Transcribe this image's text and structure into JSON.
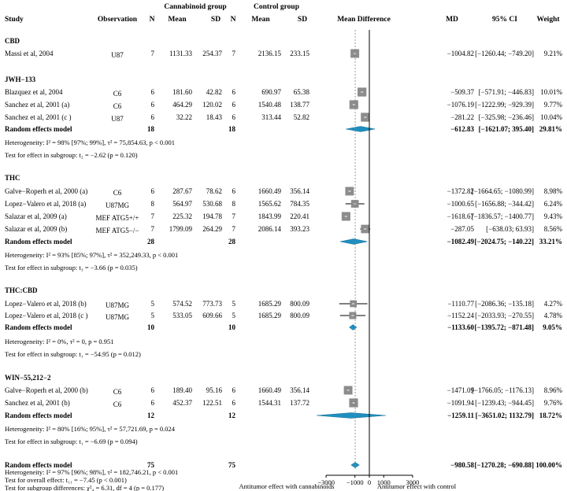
{
  "colors": {
    "box": "#8c8c8c",
    "diamond": "#1f8fc0",
    "line": "#000000"
  },
  "headers": {
    "study": "Study",
    "observation": "Observation",
    "group_treat": "Cannabinoid group",
    "group_ctrl": "Control group",
    "n": "N",
    "mean": "Mean",
    "sd": "SD",
    "mean_diff": "Mean Difference",
    "md": "MD",
    "ci": "95% CI",
    "weight": "Weight"
  },
  "axis": {
    "ticks": [
      -3000,
      -1000,
      0,
      1000,
      3000
    ],
    "tick_labels": [
      "−3000",
      "−1000",
      "0",
      "1000",
      "3000"
    ],
    "label_left": "Antitumor effect with cannabinoids",
    "label_right": "Antitumor effect with control"
  },
  "chart_data": {
    "type": "forest",
    "xlim": [
      -3000,
      3000
    ],
    "groups": [
      {
        "title": "CBD",
        "studies": [
          {
            "study": "Massi et al, 2004",
            "obs": "U87",
            "n1": "7",
            "m1": "1131.33",
            "sd1": "254.37",
            "n2": "7",
            "m2": "2136.15",
            "sd2": "233.15",
            "md": -1004.82,
            "lo": -1260.44,
            "hi": -749.2,
            "md_text": "−1004.82",
            "ci_text": "[−1260.44; −749.20]",
            "w": "9.21%"
          }
        ]
      },
      {
        "title": "JWH−133",
        "studies": [
          {
            "study": "Blazquez et al, 2004",
            "obs": "C6",
            "n1": "6",
            "m1": "181.60",
            "sd1": "42.82",
            "n2": "6",
            "m2": "690.97",
            "sd2": "65.38",
            "md": -509.37,
            "lo": -571.91,
            "hi": -446.83,
            "md_text": "−509.37",
            "ci_text": "[−571.91; −446.83]",
            "w": "10.01%"
          },
          {
            "study": "Sanchez et al, 2001 (a)",
            "obs": "C6",
            "n1": "6",
            "m1": "464.29",
            "sd1": "120.02",
            "n2": "6",
            "m2": "1540.48",
            "sd2": "138.77",
            "md": -1076.19,
            "lo": -1222.99,
            "hi": -929.39,
            "md_text": "−1076.19",
            "ci_text": "[−1222.99; −929.39]",
            "w": "9.77%"
          },
          {
            "study": "Sanchez et al, 2001 (c )",
            "obs": "U87",
            "n1": "6",
            "m1": "32.22",
            "sd1": "18.43",
            "n2": "6",
            "m2": "313.44",
            "sd2": "52.82",
            "md": -281.22,
            "lo": -325.98,
            "hi": -236.46,
            "md_text": "−281.22",
            "ci_text": "[−325.98; −236.46]",
            "w": "10.04%"
          }
        ],
        "pooled": {
          "label": "Random effects model",
          "n1": "18",
          "n2": "18",
          "md": -612.83,
          "lo": -1621.07,
          "hi": 395.4,
          "md_text": "−612.83",
          "ci_text": "[−1621.07;   395.40]",
          "w": "29.81%"
        },
        "het": "Heterogeneity: I² = 98% [97%; 99%], τ² = 75,854.63, p < 0.001",
        "test": "Test for effect in subgroup: t₂ = −2.62 (p = 0.120)"
      },
      {
        "title": "THC",
        "studies": [
          {
            "study": "Galve−Roperh et al, 2000 (a)",
            "obs": "C6",
            "n1": "6",
            "m1": "287.67",
            "sd1": "78.62",
            "n2": "6",
            "m2": "1660.49",
            "sd2": "356.14",
            "md": -1372.82,
            "lo": -1664.65,
            "hi": -1080.99,
            "md_text": "−1372.82",
            "ci_text": "[−1664.65; −1080.99]",
            "w": "8.98%"
          },
          {
            "study": "Lopez−Valero et al, 2018 (a)",
            "obs": "U87MG",
            "n1": "8",
            "m1": "564.97",
            "sd1": "530.68",
            "n2": "8",
            "m2": "1565.62",
            "sd2": "784.35",
            "md": -1000.65,
            "lo": -1656.88,
            "hi": -344.42,
            "md_text": "−1000.65",
            "ci_text": "[−1656.88; −344.42]",
            "w": "6.24%"
          },
          {
            "study": "Salazar et al, 2009 (a)",
            "obs": "MEF ATG5+/+",
            "n1": "7",
            "m1": "225.32",
            "sd1": "194.78",
            "n2": "7",
            "m2": "1843.99",
            "sd2": "220.41",
            "md": -1618.67,
            "lo": -1836.57,
            "hi": -1400.77,
            "md_text": "−1618.67",
            "ci_text": "[−1836.57; −1400.77]",
            "w": "9.43%"
          },
          {
            "study": "Salazar et al, 2009 (b)",
            "obs": "MEF ATG5−/−",
            "n1": "7",
            "m1": "1799.09",
            "sd1": "264.29",
            "n2": "7",
            "m2": "2086.14",
            "sd2": "393.23",
            "md": -287.05,
            "lo": -638.03,
            "hi": 63.93,
            "md_text": "−287.05",
            "ci_text": "[−638.03;   63.93]",
            "w": "8.56%"
          }
        ],
        "pooled": {
          "label": "Random effects model",
          "n1": "28",
          "n2": "28",
          "md": -1082.49,
          "lo": -2024.75,
          "hi": -140.22,
          "md_text": "−1082.49",
          "ci_text": "[−2024.75; −140.22]",
          "w": "33.21%"
        },
        "het": "Heterogeneity: I² = 93% [85%; 97%], τ² = 352,249.33, p < 0.001",
        "test": "Test for effect in subgroup: t₃ = −3.66 (p = 0.035)"
      },
      {
        "title": "THC:CBD",
        "studies": [
          {
            "study": "Lopez−Valero et al, 2018 (b)",
            "obs": "U87MG",
            "n1": "5",
            "m1": "574.52",
            "sd1": "773.73",
            "n2": "5",
            "m2": "1685.29",
            "sd2": "800.09",
            "md": -1110.77,
            "lo": -2086.36,
            "hi": -135.18,
            "md_text": "−1110.77",
            "ci_text": "[−2086.36; −135.18]",
            "w": "4.27%"
          },
          {
            "study": "Lopez−Valero et al, 2018 (c )",
            "obs": "U87MG",
            "n1": "5",
            "m1": "533.05",
            "sd1": "609.66",
            "n2": "5",
            "m2": "1685.29",
            "sd2": "800.09",
            "md": -1152.24,
            "lo": -2033.93,
            "hi": -270.55,
            "md_text": "−1152.24",
            "ci_text": "[−2033.93; −270.55]",
            "w": "4.78%"
          }
        ],
        "pooled": {
          "label": "Random effects model",
          "n1": "10",
          "n2": "10",
          "md": -1133.6,
          "lo": -1395.72,
          "hi": -871.48,
          "md_text": "−1133.60",
          "ci_text": "[−1395.72; −871.48]",
          "w": "9.05%"
        },
        "het": "Heterogeneity: I² = 0%, τ² = 0, p = 0.951",
        "test": "Test for effect in subgroup: t₁ = −54.95 (p = 0.012)"
      },
      {
        "title": "WIN−55,212−2",
        "studies": [
          {
            "study": "Galve−Roperh et al, 2000 (b)",
            "obs": "C6",
            "n1": "6",
            "m1": "189.40",
            "sd1": "95.16",
            "n2": "6",
            "m2": "1660.49",
            "sd2": "356.14",
            "md": -1471.09,
            "lo": -1766.05,
            "hi": -1176.13,
            "md_text": "−1471.09",
            "ci_text": "[−1766.05; −1176.13]",
            "w": "8.96%"
          },
          {
            "study": "Sanchez et al, 2001 (b)",
            "obs": "C6",
            "n1": "6",
            "m1": "452.37",
            "sd1": "122.51",
            "n2": "6",
            "m2": "1544.31",
            "sd2": "137.72",
            "md": -1091.94,
            "lo": -1239.43,
            "hi": -944.45,
            "md_text": "−1091.94",
            "ci_text": "[−1239.43; −944.45]",
            "w": "9.76%"
          }
        ],
        "pooled": {
          "label": "Random effects model",
          "n1": "12",
          "n2": "12",
          "md": -1259.11,
          "lo": -3651.02,
          "hi": 1132.79,
          "md_text": "−1259.11",
          "ci_text": "[−3651.02; 1132.79]",
          "w": "18.72%"
        },
        "het": "Heterogeneity: I² = 80% [16%; 95%], τ² = 57,721.69, p = 0.024",
        "test": "Test for effect in subgroup: t₁ = −6.69 (p = 0.094)"
      }
    ],
    "overall": {
      "label": "Random effects model",
      "n1": "75",
      "n2": "75",
      "md": -980.58,
      "lo": -1270.28,
      "hi": -690.88,
      "md_text": "−980.58",
      "ci_text": "[−1270.28; −690.88]",
      "w": "100.00%",
      "het": "Heterogeneity: I² = 97% [96%; 98%], τ² = 182,746.21, p < 0.001",
      "test_overall": "Test for overall effect: t₁₁ = −7.45 (p < 0.001)",
      "test_sub": "Test for subgroup differences: χ²₄ = 6.31, df = 4 (p = 0.177)"
    }
  }
}
